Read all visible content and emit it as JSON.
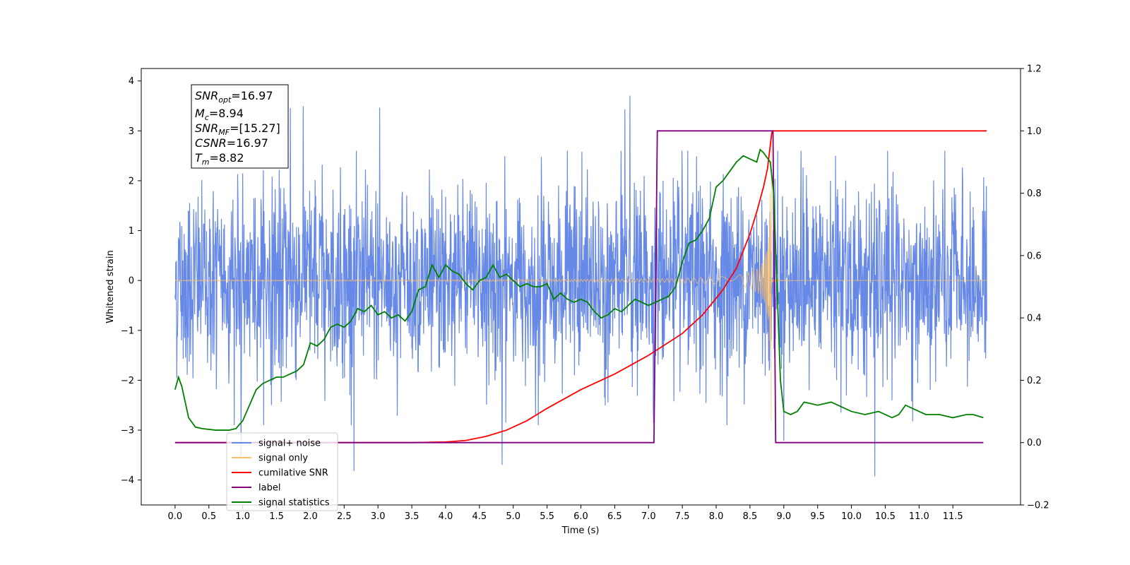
{
  "chart_data": {
    "type": "line",
    "xlabel": "Time (s)",
    "ylabel": "Whitened strain",
    "xlim": [
      -0.5,
      12.5
    ],
    "ylim": [
      -4.5,
      4.25
    ],
    "y2lim": [
      -0.2,
      1.2
    ],
    "xticks": [
      0.0,
      0.5,
      1.0,
      1.5,
      2.0,
      2.5,
      3.0,
      3.5,
      4.0,
      4.5,
      5.0,
      5.5,
      6.0,
      6.5,
      7.0,
      7.5,
      8.0,
      8.5,
      9.0,
      9.5,
      10.0,
      10.5,
      11.0,
      11.5
    ],
    "xtick_labels": [
      "0.0",
      "0.5",
      "1.0",
      "1.5",
      "2.0",
      "2.5",
      "3.0",
      "3.5",
      "4.0",
      "4.5",
      "5.0",
      "5.5",
      "6.0",
      "6.5",
      "7.0",
      "7.5",
      "8.0",
      "8.5",
      "9.0",
      "9.5",
      "10.0",
      "10.5",
      "11.0",
      "11.5"
    ],
    "yticks": [
      -4,
      -3,
      -2,
      -1,
      0,
      1,
      2,
      3,
      4
    ],
    "ytick_labels": [
      "−4",
      "−3",
      "−2",
      "−1",
      "0",
      "1",
      "2",
      "3",
      "4"
    ],
    "y2ticks": [
      -0.2,
      0.0,
      0.2,
      0.4,
      0.6,
      0.8,
      1.0,
      1.2
    ],
    "y2tick_labels": [
      "−0.2",
      "0.0",
      "0.2",
      "0.4",
      "0.6",
      "0.8",
      "1.0",
      "1.2"
    ],
    "grid": false,
    "legend_position": "bottom-left",
    "legend": [
      {
        "label": "signal+ noise",
        "color": "#6688e6"
      },
      {
        "label": "signal only",
        "color": "#ffc266"
      },
      {
        "label": "cumilative SNR",
        "color": "#ff0000"
      },
      {
        "label": "label",
        "color": "#800080"
      },
      {
        "label": "signal statistics",
        "color": "#008000"
      }
    ],
    "info_box": {
      "snr_opt": {
        "sym": "SNR",
        "sub": "opt",
        "value": "=16.97"
      },
      "mc": {
        "sym": "M",
        "sub": "c",
        "value": "=8.94"
      },
      "snr_mf": {
        "sym": "SNR",
        "sub": "MF",
        "value": "=[15.27]"
      },
      "csnr": {
        "sym": "CSNR",
        "value": "=16.97"
      },
      "tm": {
        "sym": "T",
        "sub": "m",
        "value": "=8.82"
      }
    },
    "series": [
      {
        "name": "signal+ noise",
        "axis": "left",
        "style": "noise",
        "color": "#6688e6",
        "x_range": [
          0.0,
          12.0
        ],
        "typical_range": [
          -1.7,
          1.7
        ],
        "peak_range": [
          -4.1,
          3.9
        ]
      },
      {
        "name": "signal only",
        "axis": "left",
        "style": "chirp",
        "color": "#ffc266",
        "x_range": [
          0.0,
          12.0
        ],
        "merger_time": 8.82,
        "peak_amplitude": 3.0
      },
      {
        "name": "cumilative SNR",
        "axis": "right",
        "color": "#ff0000",
        "x": [
          0.0,
          3.5,
          4.0,
          4.3,
          4.6,
          4.9,
          5.2,
          5.5,
          6.0,
          6.5,
          7.0,
          7.5,
          7.8,
          8.1,
          8.3,
          8.5,
          8.6,
          8.7,
          8.76,
          8.82,
          8.83,
          12.0
        ],
        "y": [
          0.0,
          0.0,
          0.002,
          0.007,
          0.02,
          0.04,
          0.07,
          0.11,
          0.17,
          0.22,
          0.28,
          0.35,
          0.41,
          0.49,
          0.56,
          0.67,
          0.74,
          0.82,
          0.88,
          0.99,
          1.0,
          1.0
        ]
      },
      {
        "name": "label",
        "axis": "right",
        "color": "#800080",
        "x": [
          0.0,
          7.08,
          7.13,
          8.84,
          8.88,
          11.95
        ],
        "y": [
          0.0,
          0.0,
          1.0,
          1.0,
          0.0,
          0.0
        ]
      },
      {
        "name": "signal statistics",
        "axis": "right",
        "color": "#008000",
        "x": [
          0.0,
          0.05,
          0.1,
          0.15,
          0.2,
          0.3,
          0.4,
          0.6,
          0.8,
          0.9,
          1.0,
          1.1,
          1.2,
          1.3,
          1.4,
          1.5,
          1.6,
          1.7,
          1.8,
          1.9,
          2.0,
          2.1,
          2.2,
          2.3,
          2.4,
          2.5,
          2.6,
          2.7,
          2.8,
          2.9,
          3.0,
          3.1,
          3.2,
          3.3,
          3.4,
          3.5,
          3.6,
          3.7,
          3.8,
          3.9,
          4.0,
          4.1,
          4.2,
          4.3,
          4.4,
          4.5,
          4.6,
          4.7,
          4.8,
          4.9,
          5.0,
          5.1,
          5.2,
          5.3,
          5.4,
          5.5,
          5.6,
          5.7,
          5.8,
          5.9,
          6.0,
          6.1,
          6.2,
          6.3,
          6.4,
          6.5,
          6.6,
          6.7,
          6.8,
          6.9,
          7.0,
          7.1,
          7.2,
          7.3,
          7.4,
          7.5,
          7.6,
          7.7,
          7.8,
          7.9,
          8.0,
          8.1,
          8.2,
          8.3,
          8.4,
          8.5,
          8.6,
          8.65,
          8.7,
          8.8,
          8.85,
          8.9,
          8.95,
          9.0,
          9.1,
          9.2,
          9.3,
          9.5,
          9.7,
          10.0,
          10.2,
          10.4,
          10.5,
          10.6,
          10.7,
          10.8,
          10.9,
          11.0,
          11.1,
          11.3,
          11.5,
          11.7,
          11.8,
          11.95
        ],
        "y": [
          0.17,
          0.21,
          0.18,
          0.13,
          0.08,
          0.05,
          0.045,
          0.04,
          0.04,
          0.045,
          0.07,
          0.12,
          0.17,
          0.19,
          0.2,
          0.21,
          0.21,
          0.22,
          0.23,
          0.25,
          0.32,
          0.31,
          0.33,
          0.37,
          0.38,
          0.37,
          0.39,
          0.43,
          0.42,
          0.44,
          0.41,
          0.42,
          0.4,
          0.41,
          0.39,
          0.42,
          0.49,
          0.5,
          0.57,
          0.53,
          0.57,
          0.55,
          0.54,
          0.51,
          0.49,
          0.52,
          0.53,
          0.57,
          0.53,
          0.54,
          0.52,
          0.5,
          0.51,
          0.5,
          0.5,
          0.51,
          0.46,
          0.48,
          0.46,
          0.45,
          0.46,
          0.45,
          0.42,
          0.4,
          0.41,
          0.43,
          0.42,
          0.44,
          0.46,
          0.45,
          0.44,
          0.45,
          0.46,
          0.47,
          0.5,
          0.58,
          0.64,
          0.65,
          0.68,
          0.72,
          0.82,
          0.84,
          0.87,
          0.9,
          0.92,
          0.91,
          0.9,
          0.94,
          0.93,
          0.9,
          0.8,
          0.5,
          0.2,
          0.1,
          0.09,
          0.1,
          0.13,
          0.12,
          0.13,
          0.1,
          0.09,
          0.1,
          0.09,
          0.08,
          0.09,
          0.12,
          0.11,
          0.1,
          0.09,
          0.09,
          0.08,
          0.09,
          0.09,
          0.08
        ]
      }
    ]
  }
}
